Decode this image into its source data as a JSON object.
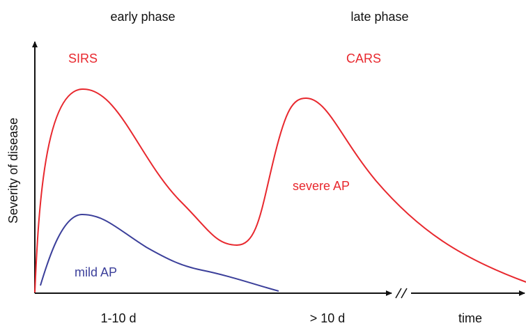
{
  "header": {
    "left": "early phase",
    "right": "late phase"
  },
  "labels": {
    "sirs": "SIRS",
    "cars": "CARS",
    "severe": "severe AP",
    "mild": "mild AP"
  },
  "axes": {
    "y_label": "Severity of disease",
    "x_label_early": "1-10 d",
    "x_label_late": "> 10 d",
    "x_label_time": "time"
  }
}
